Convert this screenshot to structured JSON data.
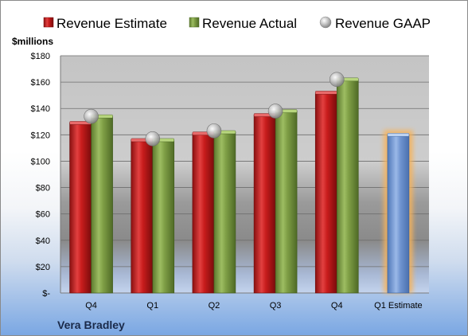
{
  "chart_data": {
    "type": "bar",
    "company": "Vera Bradley",
    "unit_label": "$millions",
    "categories": [
      "Q4",
      "Q1",
      "Q2",
      "Q3",
      "Q4",
      "Q1 Estimate"
    ],
    "series": [
      {
        "name": "Revenue Estimate",
        "type": "bar",
        "color": "#d42a2a",
        "values": [
          129,
          116,
          121,
          135,
          152,
          null
        ]
      },
      {
        "name": "Revenue Actual",
        "type": "bar",
        "color": "#8cad52",
        "values": [
          134,
          116,
          122,
          138,
          162,
          null
        ]
      },
      {
        "name": "Revenue GAAP",
        "type": "marker",
        "color": "#b8b8b8",
        "values": [
          134,
          117,
          123,
          138,
          162,
          null
        ]
      }
    ],
    "forecast": {
      "category": "Q1 Estimate",
      "value": 120,
      "color": "#7aa0d8",
      "highlight": "#f6b35b"
    },
    "yticks": [
      "$-",
      "$20",
      "$40",
      "$60",
      "$80",
      "$100",
      "$120",
      "$140",
      "$160",
      "$180"
    ],
    "ylim": [
      0,
      180
    ],
    "legend_position": "top",
    "grid": true
  }
}
